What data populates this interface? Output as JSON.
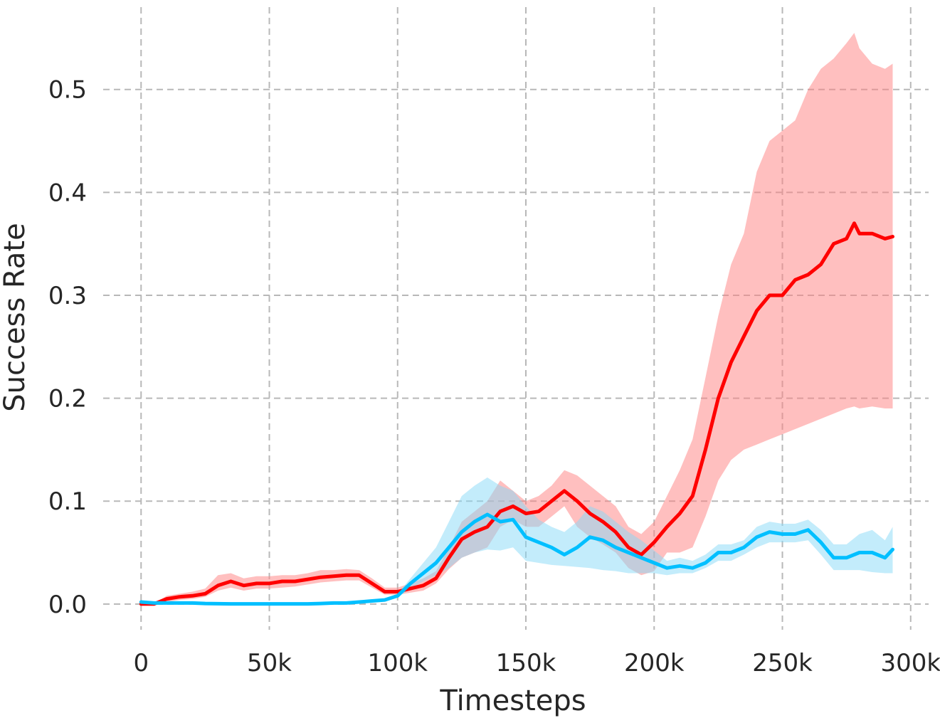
{
  "chart_data": {
    "type": "line",
    "title": "",
    "xlabel": "Timesteps",
    "ylabel": "Success Rate",
    "xlim": [
      -12000,
      307000
    ],
    "ylim": [
      -0.025,
      0.58
    ],
    "grid": true,
    "x_ticks": [
      0,
      50000,
      100000,
      150000,
      200000,
      250000,
      300000
    ],
    "x_tick_labels": [
      "0",
      "50k",
      "100k",
      "150k",
      "200k",
      "250k",
      "300k"
    ],
    "y_ticks": [
      0.0,
      0.1,
      0.2,
      0.3,
      0.4,
      0.5
    ],
    "y_tick_labels": [
      "0.0",
      "0.1",
      "0.2",
      "0.3",
      "0.4",
      "0.5"
    ],
    "series": [
      {
        "color": "#ff0000",
        "band_color": "#ff7f7f",
        "x": [
          0,
          5000,
          10000,
          15000,
          20000,
          25000,
          30000,
          35000,
          40000,
          45000,
          50000,
          55000,
          60000,
          65000,
          70000,
          75000,
          80000,
          85000,
          90000,
          95000,
          100000,
          105000,
          110000,
          115000,
          120000,
          125000,
          130000,
          135000,
          140000,
          145000,
          150000,
          155000,
          160000,
          165000,
          170000,
          175000,
          180000,
          185000,
          190000,
          195000,
          200000,
          205000,
          210000,
          215000,
          220000,
          225000,
          230000,
          235000,
          240000,
          245000,
          250000,
          255000,
          260000,
          265000,
          270000,
          275000,
          278000,
          280000,
          285000,
          290000,
          293000
        ],
        "mean": [
          0.0,
          0.0,
          0.005,
          0.007,
          0.008,
          0.01,
          0.018,
          0.022,
          0.018,
          0.02,
          0.02,
          0.022,
          0.022,
          0.024,
          0.026,
          0.027,
          0.028,
          0.028,
          0.02,
          0.012,
          0.012,
          0.015,
          0.018,
          0.025,
          0.045,
          0.063,
          0.07,
          0.075,
          0.09,
          0.095,
          0.088,
          0.09,
          0.1,
          0.11,
          0.1,
          0.088,
          0.08,
          0.07,
          0.055,
          0.048,
          0.06,
          0.075,
          0.088,
          0.105,
          0.15,
          0.2,
          0.235,
          0.26,
          0.285,
          0.3,
          0.3,
          0.315,
          0.32,
          0.33,
          0.35,
          0.355,
          0.37,
          0.36,
          0.36,
          0.355,
          0.357
        ],
        "lower": [
          0.0,
          0.0,
          0.002,
          0.004,
          0.005,
          0.007,
          0.013,
          0.016,
          0.013,
          0.015,
          0.015,
          0.016,
          0.017,
          0.019,
          0.021,
          0.022,
          0.023,
          0.023,
          0.016,
          0.009,
          0.009,
          0.011,
          0.013,
          0.02,
          0.034,
          0.045,
          0.05,
          0.055,
          0.075,
          0.082,
          0.075,
          0.075,
          0.085,
          0.095,
          0.075,
          0.065,
          0.058,
          0.05,
          0.035,
          0.028,
          0.032,
          0.05,
          0.05,
          0.055,
          0.085,
          0.12,
          0.14,
          0.15,
          0.155,
          0.16,
          0.165,
          0.17,
          0.175,
          0.18,
          0.185,
          0.19,
          0.192,
          0.19,
          0.192,
          0.19,
          0.19
        ],
        "upper": [
          0.0,
          0.0,
          0.008,
          0.01,
          0.012,
          0.015,
          0.028,
          0.03,
          0.025,
          0.027,
          0.027,
          0.028,
          0.028,
          0.03,
          0.033,
          0.033,
          0.034,
          0.033,
          0.025,
          0.016,
          0.016,
          0.02,
          0.025,
          0.032,
          0.055,
          0.08,
          0.09,
          0.1,
          0.12,
          0.11,
          0.1,
          0.105,
          0.115,
          0.13,
          0.125,
          0.115,
          0.105,
          0.095,
          0.075,
          0.068,
          0.08,
          0.105,
          0.13,
          0.16,
          0.22,
          0.28,
          0.33,
          0.36,
          0.42,
          0.45,
          0.46,
          0.47,
          0.5,
          0.52,
          0.53,
          0.545,
          0.555,
          0.54,
          0.525,
          0.52,
          0.525
        ]
      },
      {
        "color": "#00bfff",
        "band_color": "#87d9f7",
        "x": [
          0,
          5000,
          10000,
          15000,
          20000,
          25000,
          30000,
          35000,
          40000,
          45000,
          50000,
          55000,
          60000,
          65000,
          70000,
          75000,
          80000,
          85000,
          90000,
          95000,
          100000,
          105000,
          110000,
          115000,
          120000,
          125000,
          130000,
          135000,
          140000,
          145000,
          150000,
          155000,
          160000,
          165000,
          170000,
          175000,
          180000,
          185000,
          190000,
          195000,
          200000,
          205000,
          210000,
          215000,
          220000,
          225000,
          230000,
          235000,
          240000,
          245000,
          250000,
          255000,
          260000,
          265000,
          270000,
          275000,
          280000,
          285000,
          290000,
          293000
        ],
        "mean": [
          0.002,
          0.001,
          0.001,
          0.001,
          0.001,
          0.0005,
          0.0003,
          0.0002,
          0.0002,
          0.0002,
          0.0002,
          0.0002,
          0.0002,
          0.0002,
          0.0005,
          0.001,
          0.001,
          0.002,
          0.003,
          0.004,
          0.008,
          0.02,
          0.03,
          0.04,
          0.055,
          0.07,
          0.08,
          0.087,
          0.08,
          0.082,
          0.065,
          0.06,
          0.055,
          0.048,
          0.055,
          0.065,
          0.062,
          0.055,
          0.05,
          0.045,
          0.04,
          0.035,
          0.037,
          0.035,
          0.04,
          0.05,
          0.05,
          0.055,
          0.065,
          0.07,
          0.068,
          0.068,
          0.072,
          0.06,
          0.045,
          0.045,
          0.05,
          0.05,
          0.045,
          0.053
        ],
        "lower": [
          0.002,
          0.001,
          0.001,
          0.001,
          0.001,
          0.0005,
          0.0003,
          0.0002,
          0.0002,
          0.0002,
          0.0002,
          0.0002,
          0.0002,
          0.0002,
          0.0005,
          0.001,
          0.001,
          0.002,
          0.003,
          0.004,
          0.007,
          0.015,
          0.022,
          0.028,
          0.035,
          0.045,
          0.05,
          0.053,
          0.052,
          0.055,
          0.042,
          0.04,
          0.038,
          0.037,
          0.036,
          0.035,
          0.033,
          0.032,
          0.03,
          0.03,
          0.03,
          0.028,
          0.03,
          0.03,
          0.035,
          0.042,
          0.042,
          0.048,
          0.055,
          0.06,
          0.06,
          0.06,
          0.062,
          0.048,
          0.033,
          0.033,
          0.033,
          0.031,
          0.03,
          0.03
        ],
        "upper": [
          0.002,
          0.001,
          0.001,
          0.001,
          0.001,
          0.0005,
          0.0003,
          0.0002,
          0.0002,
          0.0002,
          0.0002,
          0.0002,
          0.0002,
          0.0002,
          0.0005,
          0.001,
          0.001,
          0.002,
          0.003,
          0.005,
          0.01,
          0.025,
          0.04,
          0.055,
          0.08,
          0.105,
          0.115,
          0.123,
          0.115,
          0.11,
          0.095,
          0.082,
          0.075,
          0.07,
          0.08,
          0.095,
          0.09,
          0.08,
          0.07,
          0.062,
          0.052,
          0.042,
          0.045,
          0.042,
          0.048,
          0.058,
          0.058,
          0.062,
          0.075,
          0.08,
          0.078,
          0.078,
          0.082,
          0.072,
          0.058,
          0.058,
          0.068,
          0.072,
          0.062,
          0.075
        ]
      }
    ]
  }
}
